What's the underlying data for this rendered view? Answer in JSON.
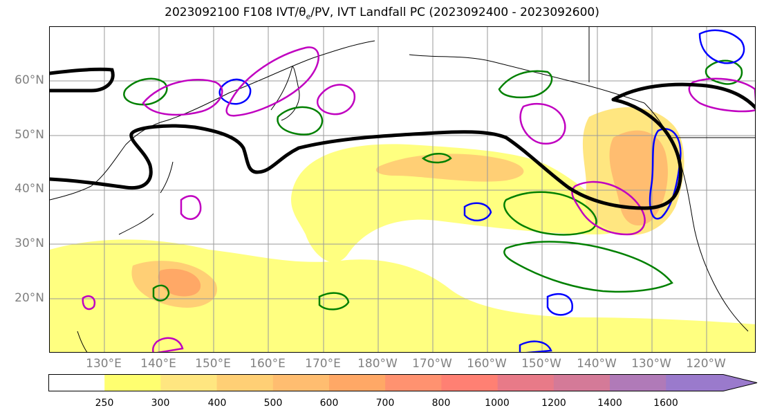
{
  "title": "2023092100 F108 IVT/θe/PV, IVT Landfall PC (2023092400 - 2023092600)",
  "map": {
    "lat_labels": [
      "60°N",
      "50°N",
      "40°N",
      "30°N",
      "20°N"
    ],
    "lon_labels": [
      "130°E",
      "140°E",
      "150°E",
      "160°E",
      "170°E",
      "180°W",
      "170°W",
      "160°W",
      "150°W",
      "140°W",
      "130°W",
      "120°W"
    ],
    "contour_colors": {
      "landfall_pc": "#000000",
      "theta_e": "#008000",
      "pv_negative": "#0000ff",
      "pv_positive": "#c000c0"
    }
  },
  "colorbar": {
    "tick_labels": [
      "250",
      "300",
      "400",
      "500",
      "600",
      "700",
      "800",
      "1000",
      "1200",
      "1400",
      "1600"
    ],
    "colors": [
      "#ffffff",
      "#ffff70",
      "#ffe680",
      "#ffcf75",
      "#ffbd70",
      "#ffa866",
      "#ff9270",
      "#ff8073",
      "#e87a88",
      "#d47a98",
      "#b07ab8",
      "#9a7acc"
    ]
  }
}
